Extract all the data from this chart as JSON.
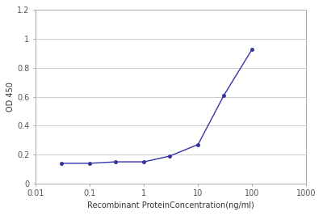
{
  "x_values": [
    0.03,
    0.1,
    0.3,
    1,
    3,
    10,
    30,
    100
  ],
  "y_values": [
    0.14,
    0.14,
    0.15,
    0.15,
    0.19,
    0.27,
    0.61,
    0.93
  ],
  "line_color": "#3333aa",
  "marker_color": "#333399",
  "marker_style": "o",
  "marker_size": 3,
  "line_width": 1.0,
  "xlabel": "Recombinant ProteinConcentration(ng/ml)",
  "ylabel": "OD 450",
  "xlim": [
    0.01,
    1000
  ],
  "ylim": [
    0,
    1.2
  ],
  "yticks": [
    0,
    0.2,
    0.4,
    0.6,
    0.8,
    1.0,
    1.2
  ],
  "ytick_labels": [
    "0",
    "0.2",
    "0.4",
    "0.6",
    "0.8",
    "1",
    "1.2"
  ],
  "xtick_labels": [
    "0.01",
    "0.1",
    "1",
    "10",
    "100",
    "1000"
  ],
  "xtick_values": [
    0.01,
    0.1,
    1,
    10,
    100,
    1000
  ],
  "xlabel_fontsize": 7,
  "ylabel_fontsize": 7,
  "tick_fontsize": 7,
  "plot_bg": "#ffffff",
  "figure_bg": "#ffffff",
  "grid_color": "#cccccc",
  "spine_color": "#aaaaaa"
}
